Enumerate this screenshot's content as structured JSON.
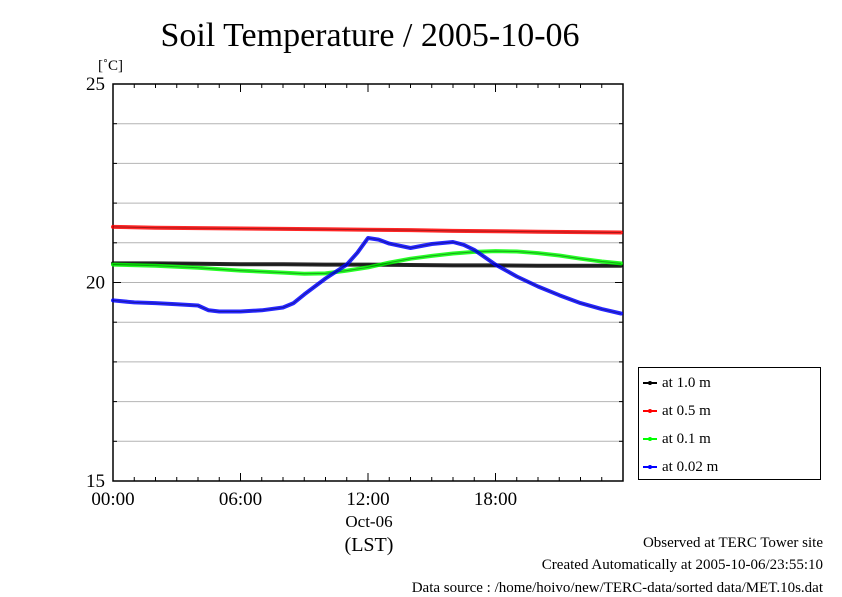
{
  "chart_data": {
    "type": "line",
    "title": "Soil Temperature / 2005-10-06",
    "ylabel": "[˚C]",
    "xlabel": "(LST)",
    "date_label": "Oct-06",
    "ylim": [
      15,
      25
    ],
    "xlim": [
      0,
      24
    ],
    "y_ticks": [
      "25",
      "20",
      "15"
    ],
    "y_tick_values": [
      25,
      20,
      15
    ],
    "x_ticks": [
      "00:00",
      "06:00",
      "12:00",
      "18:00"
    ],
    "x_tick_values": [
      0,
      6,
      12,
      18
    ],
    "grid": true,
    "legend_position": "lower-right outside",
    "series": [
      {
        "name": "at 1.0 m",
        "color": "#000000",
        "x": [
          0,
          2,
          4,
          6,
          8,
          10,
          12,
          14,
          16,
          18,
          20,
          22,
          23.9
        ],
        "y": [
          20.48,
          20.48,
          20.47,
          20.46,
          20.46,
          20.45,
          20.45,
          20.44,
          20.43,
          20.43,
          20.42,
          20.42,
          20.42
        ]
      },
      {
        "name": "at 0.5 m",
        "color": "#ff0000",
        "x": [
          0,
          2,
          4,
          6,
          8,
          10,
          12,
          14,
          16,
          18,
          20,
          22,
          23.9
        ],
        "y": [
          21.4,
          21.38,
          21.37,
          21.36,
          21.35,
          21.34,
          21.33,
          21.32,
          21.3,
          21.29,
          21.28,
          21.27,
          21.26
        ]
      },
      {
        "name": "at 0.1 m",
        "color": "#00ff00",
        "x": [
          0,
          2,
          4,
          6,
          8,
          9,
          10,
          11,
          12,
          13,
          14,
          15,
          16,
          17,
          18,
          19,
          20,
          21,
          22,
          23,
          23.9
        ],
        "y": [
          20.45,
          20.42,
          20.37,
          20.3,
          20.25,
          20.22,
          20.23,
          20.3,
          20.38,
          20.5,
          20.6,
          20.67,
          20.73,
          20.77,
          20.79,
          20.78,
          20.74,
          20.68,
          20.6,
          20.53,
          20.48
        ]
      },
      {
        "name": "at 0.02 m",
        "color": "#0000ff",
        "x": [
          0,
          1,
          2,
          3,
          4,
          4.5,
          5,
          6,
          7,
          8,
          8.5,
          9,
          10,
          11,
          11.5,
          12,
          12.5,
          13,
          14,
          15,
          16,
          16.5,
          17,
          18,
          19,
          20,
          21,
          22,
          23,
          23.9
        ],
        "y": [
          19.55,
          19.5,
          19.48,
          19.45,
          19.42,
          19.3,
          19.27,
          19.27,
          19.3,
          19.37,
          19.48,
          19.7,
          20.1,
          20.45,
          20.75,
          21.12,
          21.08,
          20.98,
          20.87,
          20.97,
          21.02,
          20.95,
          20.82,
          20.45,
          20.15,
          19.9,
          19.68,
          19.48,
          19.33,
          19.22
        ]
      }
    ]
  },
  "footer": {
    "line1": "Observed at TERC Tower site",
    "line2": "Created Automatically at 2005-10-06/23:55:10",
    "line3": "Data source : /home/hoivo/new/TERC-data/sorted  data/MET.10s.dat"
  }
}
